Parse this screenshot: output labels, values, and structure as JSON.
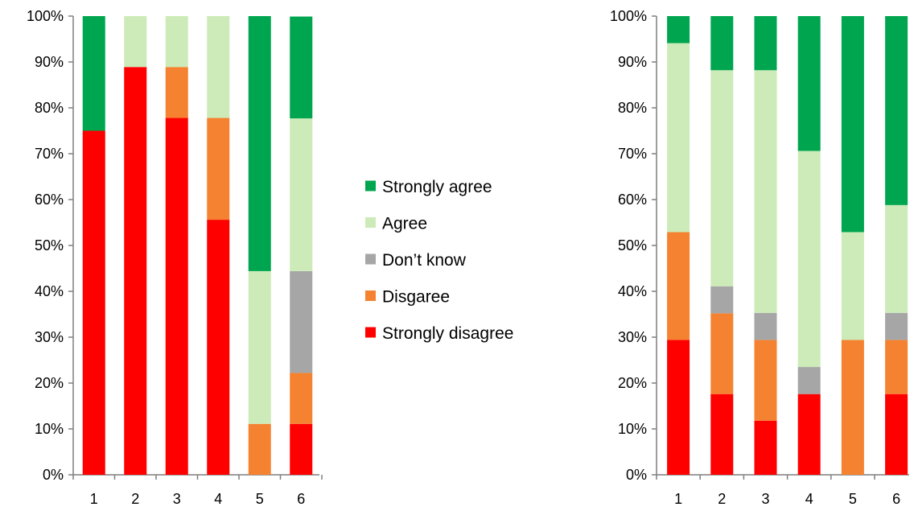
{
  "chart_data": [
    {
      "type": "bar",
      "stacked": true,
      "normalized": true,
      "categories": [
        "1",
        "2",
        "3",
        "4",
        "5",
        "6"
      ],
      "ylim": [
        0,
        100
      ],
      "yticks": [
        "0%",
        "10%",
        "20%",
        "30%",
        "40%",
        "50%",
        "60%",
        "70%",
        "80%",
        "90%",
        "100%"
      ],
      "series": [
        {
          "name": "Strongly disagree",
          "color": "#ff0000",
          "values": [
            75,
            88.9,
            77.8,
            55.6,
            0,
            11.1
          ]
        },
        {
          "name": "Disgaree",
          "color": "#f58230",
          "values": [
            0,
            0,
            11.1,
            22.2,
            11.1,
            11.1
          ]
        },
        {
          "name": "Don’t know",
          "color": "#a6a6a6",
          "values": [
            0,
            0,
            0,
            0,
            0,
            22.2
          ]
        },
        {
          "name": "Agree",
          "color": "#cdebb8",
          "values": [
            0,
            11.1,
            11.1,
            22.2,
            33.3,
            33.3
          ]
        },
        {
          "name": "Strongly agree",
          "color": "#00a64f",
          "values": [
            25,
            0,
            0,
            0,
            55.6,
            22.2
          ]
        }
      ]
    },
    {
      "type": "bar",
      "stacked": true,
      "normalized": true,
      "categories": [
        "1",
        "2",
        "3",
        "4",
        "5",
        "6"
      ],
      "ylim": [
        0,
        100
      ],
      "yticks": [
        "0%",
        "10%",
        "20%",
        "30%",
        "40%",
        "50%",
        "60%",
        "70%",
        "80%",
        "90%",
        "100%"
      ],
      "series": [
        {
          "name": "Strongly disagree",
          "color": "#ff0000",
          "values": [
            29.4,
            17.6,
            11.8,
            17.6,
            0,
            17.6
          ]
        },
        {
          "name": "Disgaree",
          "color": "#f58230",
          "values": [
            23.5,
            17.6,
            17.6,
            0,
            29.4,
            11.8
          ]
        },
        {
          "name": "Don’t know",
          "color": "#a6a6a6",
          "values": [
            0,
            5.9,
            5.9,
            5.9,
            0,
            5.9
          ]
        },
        {
          "name": "Agree",
          "color": "#cdebb8",
          "values": [
            41.2,
            47.1,
            52.9,
            47.1,
            23.5,
            23.5
          ]
        },
        {
          "name": "Strongly agree",
          "color": "#00a64f",
          "values": [
            5.9,
            11.8,
            11.8,
            29.4,
            47.1,
            41.2
          ]
        }
      ]
    }
  ],
  "legend": [
    {
      "label": "Strongly agree",
      "color": "#00a64f"
    },
    {
      "label": "Agree",
      "color": "#cdebb8"
    },
    {
      "label": "Don’t know",
      "color": "#a6a6a6"
    },
    {
      "label": "Disgaree",
      "color": "#f58230"
    },
    {
      "label": "Strongly disagree",
      "color": "#ff0000"
    }
  ]
}
